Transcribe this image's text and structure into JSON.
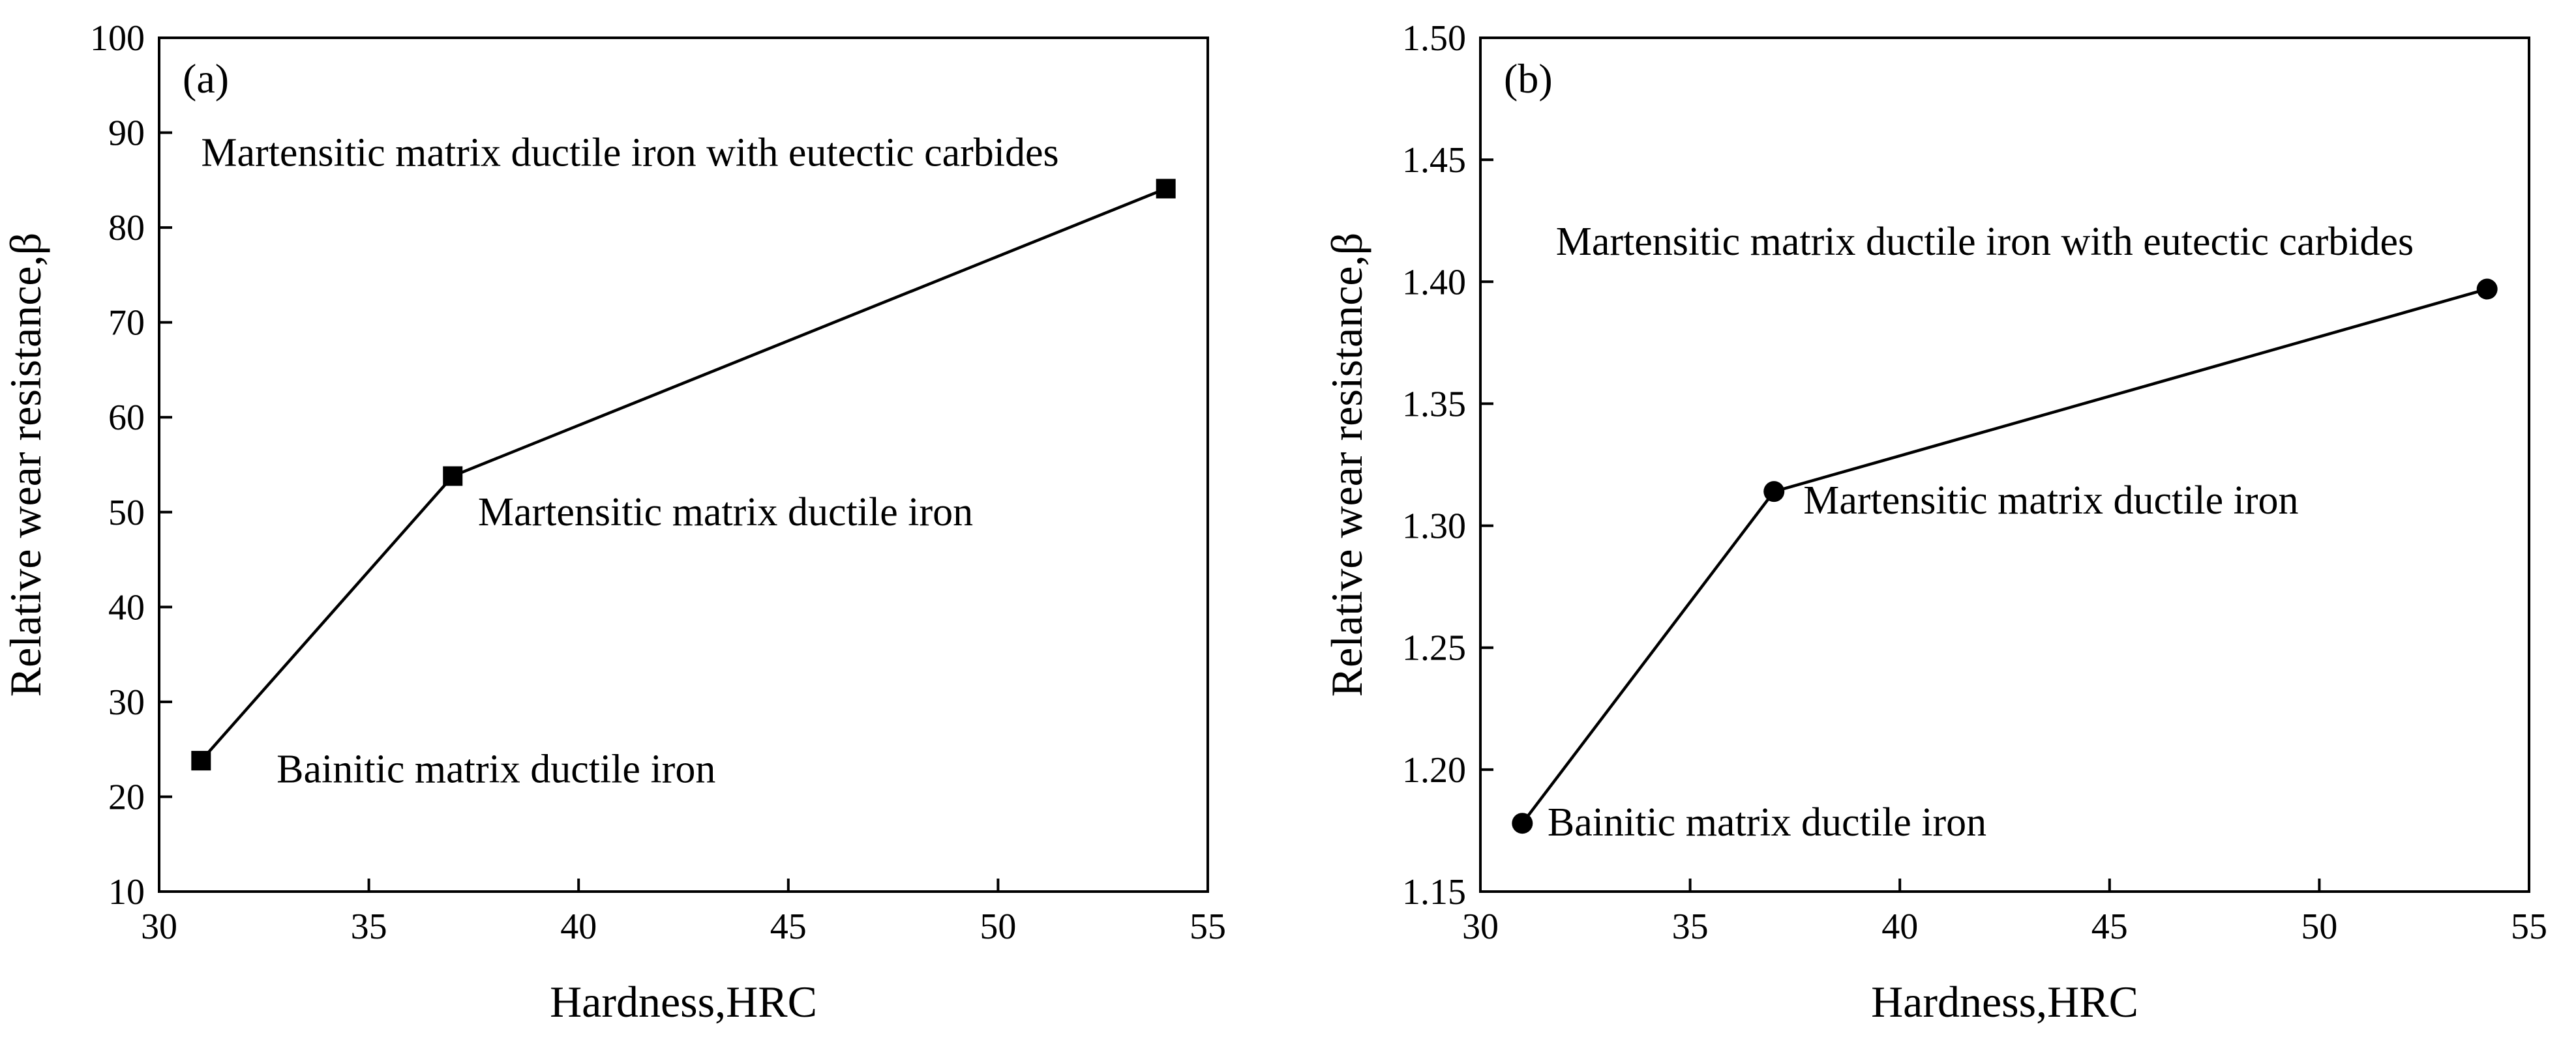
{
  "chart_data": [
    {
      "type": "line",
      "panel_label": "(a)",
      "marker": "square",
      "x": [
        31,
        37,
        54
      ],
      "y": [
        23.8,
        53.8,
        84.1
      ],
      "xlabel": "Hardness,HRC",
      "ylabel": "Relative wear resistance,β",
      "xlim": [
        30,
        55
      ],
      "ylim": [
        10,
        100
      ],
      "xticks": [
        30,
        35,
        40,
        45,
        50,
        55
      ],
      "yticks": [
        10,
        20,
        30,
        40,
        50,
        60,
        70,
        80,
        90,
        100
      ],
      "xtick_labels": [
        "30",
        "35",
        "40",
        "45",
        "50",
        "55"
      ],
      "ytick_labels": [
        "10",
        "20",
        "30",
        "40",
        "50",
        "60",
        "70",
        "80",
        "90",
        "100"
      ],
      "annotations": [
        {
          "text": "Bainitic matrix ductile iron",
          "x": 32.8,
          "y": 21.5
        },
        {
          "text": "Martensitic matrix ductile iron",
          "x": 37.6,
          "y": 48.6
        },
        {
          "text": "Martensitic matrix ductile iron with eutectic carbides",
          "x": 31.0,
          "y": 86.5
        }
      ]
    },
    {
      "type": "line",
      "panel_label": "(b)",
      "marker": "circle",
      "x": [
        31,
        37,
        54
      ],
      "y": [
        1.178,
        1.314,
        1.397
      ],
      "xlabel": "Hardness,HRC",
      "ylabel": "Relative wear resistance,β",
      "xlim": [
        30,
        55
      ],
      "ylim": [
        1.15,
        1.5
      ],
      "xticks": [
        30,
        35,
        40,
        45,
        50,
        55
      ],
      "yticks": [
        1.15,
        1.2,
        1.25,
        1.3,
        1.35,
        1.4,
        1.45,
        1.5
      ],
      "xtick_labels": [
        "30",
        "35",
        "40",
        "45",
        "50",
        "55"
      ],
      "ytick_labels": [
        "1.15",
        "1.20",
        "1.25",
        "1.30",
        "1.35",
        "1.40",
        "1.45",
        "1.50"
      ],
      "annotations": [
        {
          "text": "Bainitic matrix ductile iron",
          "x": 31.6,
          "y": 1.173
        },
        {
          "text": "Martensitic matrix ductile iron",
          "x": 37.7,
          "y": 1.305
        },
        {
          "text": "Martensitic matrix ductile iron with eutectic carbides",
          "x": 31.8,
          "y": 1.411
        }
      ]
    }
  ]
}
